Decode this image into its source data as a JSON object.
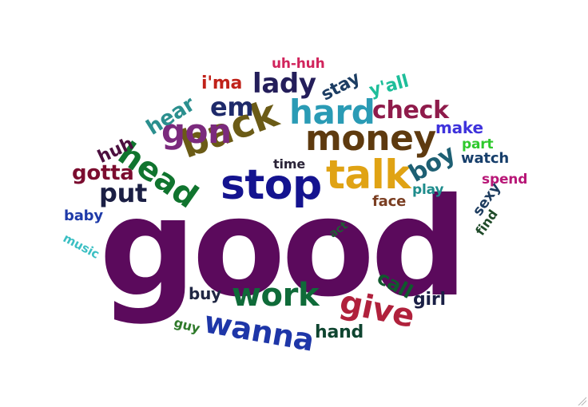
{
  "word_cloud": {
    "words": [
      {
        "text": "good",
        "color": "#5b0a5c"
      },
      {
        "text": "talk",
        "color": "#e0a314"
      },
      {
        "text": "stop",
        "color": "#14138f"
      },
      {
        "text": "back",
        "color": "#6b5b16"
      },
      {
        "text": "money",
        "color": "#5e3a0f"
      },
      {
        "text": "hard",
        "color": "#2a9bb5"
      },
      {
        "text": "head",
        "color": "#10742e"
      },
      {
        "text": "gon",
        "color": "#7b2a7d"
      },
      {
        "text": "work",
        "color": "#0f6b39"
      },
      {
        "text": "give",
        "color": "#b0213c"
      },
      {
        "text": "wanna",
        "color": "#1e36a8"
      },
      {
        "text": "lady",
        "color": "#241e5a"
      },
      {
        "text": "put",
        "color": "#1b1f44"
      },
      {
        "text": "em",
        "color": "#1e2a6a"
      },
      {
        "text": "check",
        "color": "#8f1b4b"
      },
      {
        "text": "gotta",
        "color": "#7b0c2f"
      },
      {
        "text": "boy",
        "color": "#1d5f73"
      },
      {
        "text": "hear",
        "color": "#2b8f8e"
      },
      {
        "text": "huh",
        "color": "#4c0f3f"
      },
      {
        "text": "stay",
        "color": "#1c3d63"
      },
      {
        "text": "y'all",
        "color": "#1ebe9a"
      },
      {
        "text": "i'ma",
        "color": "#c0221a"
      },
      {
        "text": "uh-huh",
        "color": "#d1245c"
      },
      {
        "text": "make",
        "color": "#3f33dc"
      },
      {
        "text": "part",
        "color": "#2fc92d"
      },
      {
        "text": "watch",
        "color": "#173f6b"
      },
      {
        "text": "spend",
        "color": "#b81777"
      },
      {
        "text": "time",
        "color": "#2b2438"
      },
      {
        "text": "play",
        "color": "#1e8c8c"
      },
      {
        "text": "face",
        "color": "#7a3e22"
      },
      {
        "text": "baby",
        "color": "#1e3aa8"
      },
      {
        "text": "music",
        "color": "#3bbfc3"
      },
      {
        "text": "sexy",
        "color": "#1d3c5f"
      },
      {
        "text": "find",
        "color": "#1f4a29"
      },
      {
        "text": "act",
        "color": "#205a34"
      },
      {
        "text": "call",
        "color": "#0f5a2d"
      },
      {
        "text": "girl",
        "color": "#1a1f45"
      },
      {
        "text": "buy",
        "color": "#202744"
      },
      {
        "text": "hand",
        "color": "#0f4530"
      },
      {
        "text": "guy",
        "color": "#2f7a2b"
      }
    ]
  }
}
